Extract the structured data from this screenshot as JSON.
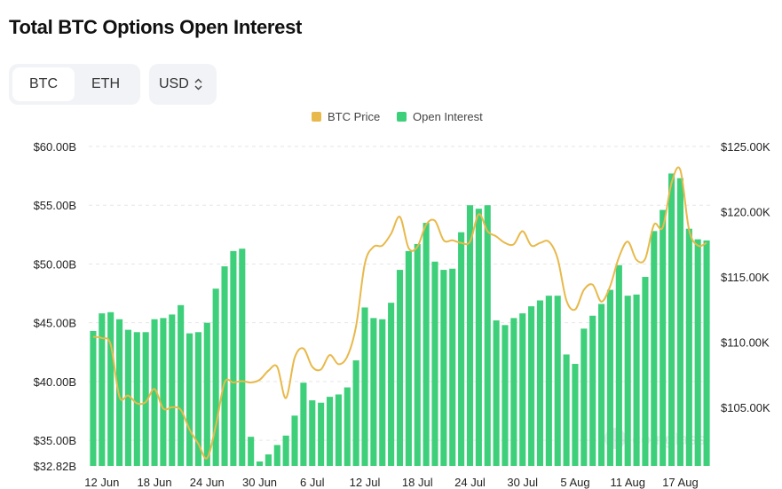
{
  "title": "Total BTC Options Open Interest",
  "coin_toggle": {
    "options": [
      "BTC",
      "ETH"
    ],
    "selected": "BTC"
  },
  "currency_select": {
    "value": "USD"
  },
  "watermark": "coinglass",
  "colors": {
    "price": "#e8b94a",
    "oi": "#3ecf7a",
    "grid": "#e6e6e6"
  },
  "chart_data": {
    "type": "bar+line",
    "legend": [
      {
        "name": "BTC Price",
        "color": "#e8b94a"
      },
      {
        "name": "Open Interest",
        "color": "#3ecf7a"
      }
    ],
    "x_tick_labels": [
      "12 Jun",
      "18 Jun",
      "24 Jun",
      "30 Jun",
      "6 Jul",
      "12 Jul",
      "18 Jul",
      "24 Jul",
      "30 Jul",
      "5 Aug",
      "11 Aug",
      "17 Aug"
    ],
    "left_axis": {
      "labels": [
        "$60.00B",
        "$55.00B",
        "$50.00B",
        "$45.00B",
        "$40.00B",
        "$35.00B",
        "$32.82B"
      ],
      "values": [
        60,
        55,
        50,
        45,
        40,
        35,
        32.82
      ],
      "range": [
        32.82,
        60
      ]
    },
    "right_axis": {
      "labels": [
        "$125.00K",
        "$120.00K",
        "$115.00K",
        "$110.00K",
        "$105.00K"
      ],
      "values": [
        125,
        120,
        115,
        110,
        105
      ],
      "range": [
        100.5,
        125
      ]
    },
    "series": [
      {
        "name": "Open Interest",
        "unit": "USD billions",
        "values": [
          44.3,
          45.8,
          45.9,
          45.3,
          44.4,
          44.2,
          44.2,
          45.3,
          45.4,
          45.7,
          46.5,
          44.1,
          44.2,
          45.0,
          47.9,
          49.8,
          51.1,
          51.3,
          35.3,
          33.2,
          33.8,
          34.6,
          35.4,
          37.1,
          39.9,
          38.4,
          38.2,
          38.7,
          38.9,
          39.5,
          41.8,
          46.3,
          45.4,
          45.3,
          46.7,
          49.5,
          51.1,
          51.7,
          53.5,
          50.2,
          49.5,
          49.6,
          52.7,
          55.0,
          54.7,
          55.0,
          45.2,
          44.8,
          45.4,
          45.8,
          46.4,
          46.9,
          47.3,
          47.3,
          42.3,
          41.5,
          44.5,
          45.6,
          46.6,
          47.8,
          49.9,
          47.3,
          47.4,
          48.9,
          52.8,
          54.6,
          57.7,
          57.3,
          53.0,
          52.1,
          52.0
        ],
        "color": "#3ecf7a"
      },
      {
        "name": "BTC Price",
        "unit": "USD thousands",
        "values": [
          110.4,
          110.3,
          109.8,
          105.8,
          105.9,
          105.3,
          105.4,
          106.4,
          104.9,
          105.0,
          104.8,
          103.3,
          102.2,
          101.1,
          103.6,
          106.9,
          106.9,
          107.0,
          106.9,
          107.1,
          107.8,
          108.1,
          105.7,
          108.8,
          109.5,
          108.1,
          107.9,
          109.0,
          108.3,
          108.9,
          111.2,
          116.0,
          117.3,
          117.4,
          118.3,
          119.6,
          117.2,
          117.3,
          119.0,
          119.3,
          117.8,
          117.8,
          117.6,
          117.7,
          119.8,
          118.5,
          118.1,
          117.6,
          117.5,
          118.5,
          117.4,
          117.6,
          117.7,
          116.4,
          113.2,
          112.5,
          114.0,
          114.4,
          113.1,
          114.3,
          116.5,
          117.7,
          116.3,
          116.4,
          119.0,
          118.8,
          122.2,
          123.2,
          118.6,
          117.4,
          117.6
        ],
        "color": "#e8b94a"
      }
    ]
  }
}
